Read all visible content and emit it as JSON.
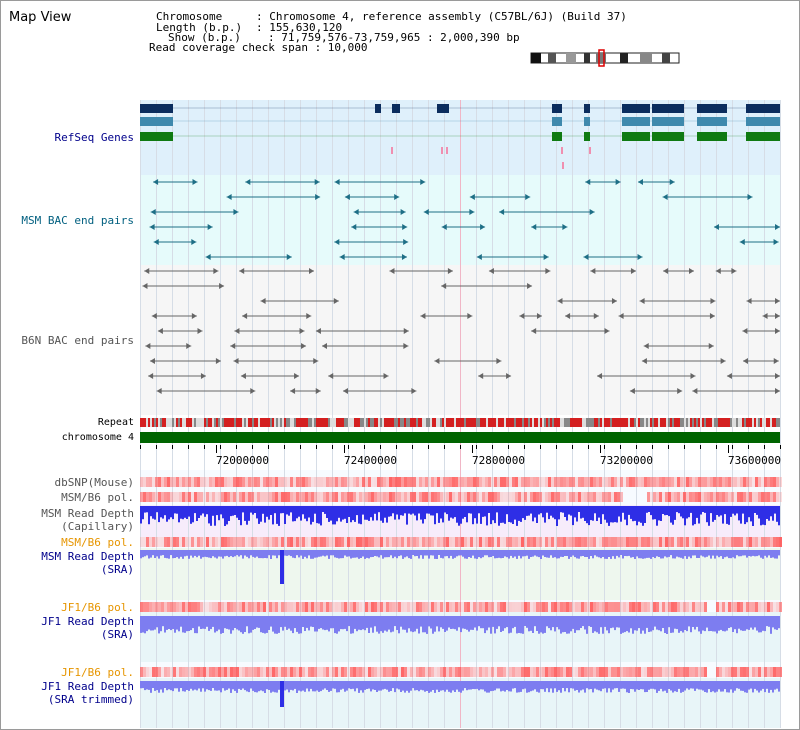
{
  "page": {
    "title": "Map View"
  },
  "info": {
    "chromosome_key": "Chromosome",
    "chromosome_value": ": Chromosome 4, reference assembly (C57BL/6J) (Build 37)",
    "length_key": "Length (b.p.)",
    "length_value": ": 155,630,120",
    "show_key": "Show (b.p.)",
    "show_value": ": 71,759,576-73,759,965 : 2,000,390 bp",
    "coverage": "Read coverage check span : 10,000"
  },
  "tracks": {
    "refseq": "RefSeq Genes",
    "msm_bac": "MSM BAC end pairs",
    "b6n_bac": "B6N BAC end pairs",
    "repeat": "Repeat",
    "chromosome": "chromosome 4",
    "dbsnp": "dbSNP(Mouse)",
    "msm_b6_pol_1": "MSM/B6 pol.",
    "msm_depth_cap_1": "MSM Read Depth",
    "msm_depth_cap_2": "(Capillary)",
    "msm_b6_pol_2": "MSM/B6 pol.",
    "msm_depth_sra_1": "MSM Read Depth",
    "msm_depth_sra_2": "(SRA)",
    "jf1_b6_pol_1": "JF1/B6 pol.",
    "jf1_depth_sra_1": "JF1 Read Depth",
    "jf1_depth_sra_2": "(SRA)",
    "jf1_b6_pol_2": "JF1/B6 pol.",
    "jf1_depth_trim_1": "JF1 Read Depth",
    "jf1_depth_trim_2": "(SRA trimmed)"
  },
  "axis": {
    "ticks": [
      "72000000",
      "72400000",
      "72800000",
      "73200000",
      "73600000"
    ]
  },
  "colors": {
    "refseq_bg": "#dff0fb",
    "msm_bg": "#e6fbfb",
    "b6n_bg": "#f6f6f6",
    "gene_navy": "#0b2d5e",
    "gene_steel": "#3f89ad",
    "gene_green": "#0f7a12",
    "chromosome_bar": "#006400",
    "repeat_red": "#d42020",
    "snp_red": "#ff5555",
    "depth_blue": "#2e2ee6",
    "depth_light": "#7d7df0"
  }
}
